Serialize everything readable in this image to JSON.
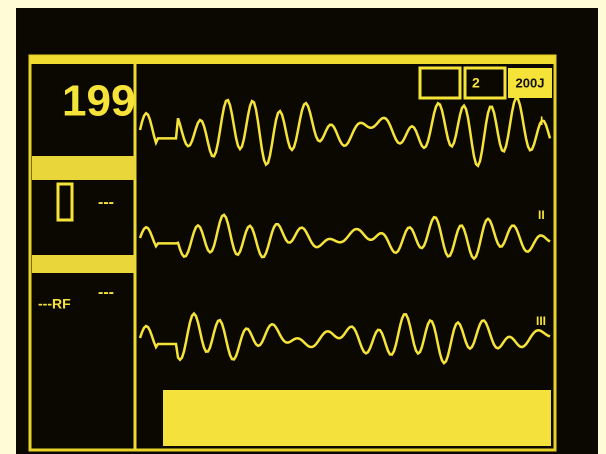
{
  "monitor": {
    "heart_rate": "199",
    "lead_count": "2",
    "energy": "200J",
    "panels": [
      {
        "readings": [
          "---"
        ]
      },
      {
        "readings": [
          "---RF",
          "---"
        ]
      }
    ],
    "leads": [
      "I",
      "II",
      "III"
    ]
  }
}
